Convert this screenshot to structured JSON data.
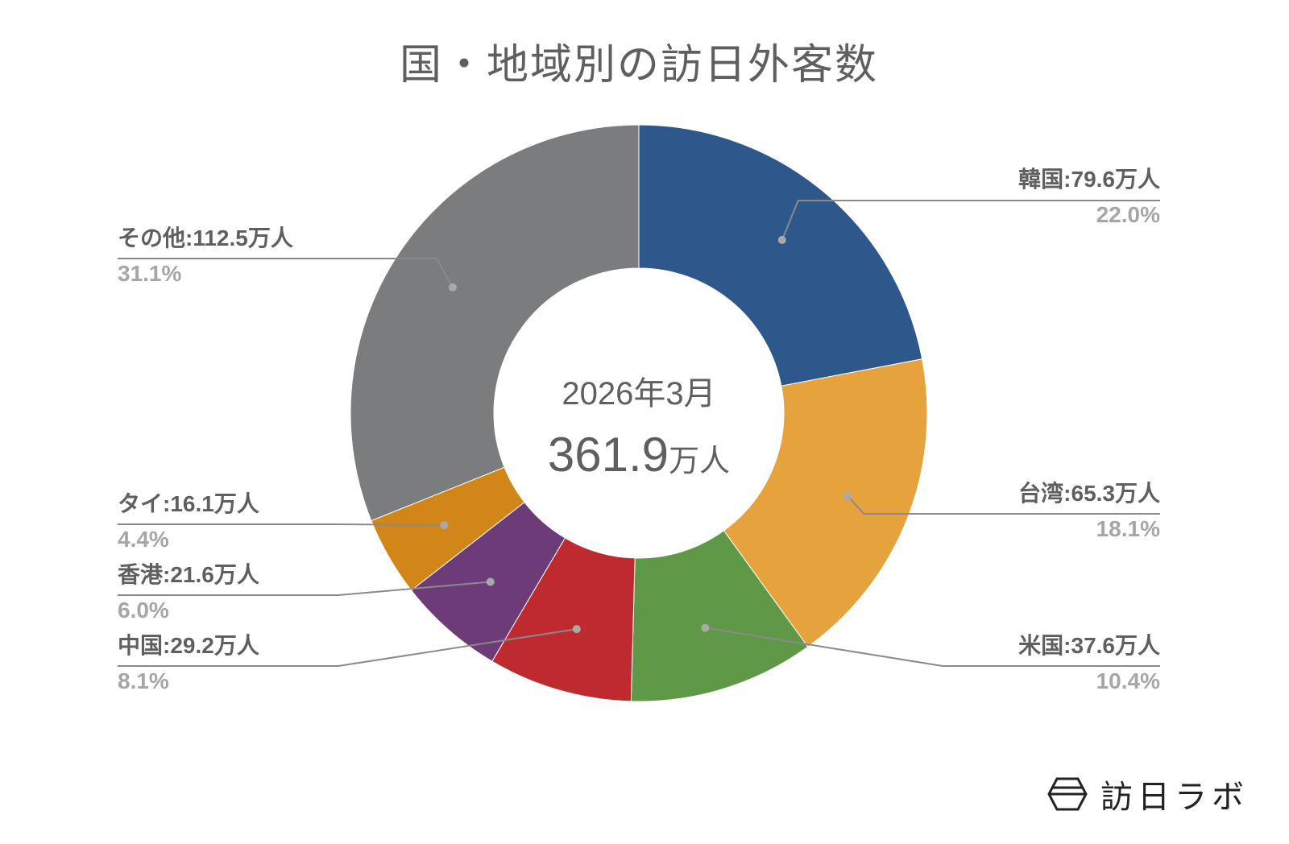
{
  "title": "国・地域別の訪日外客数",
  "center": {
    "date": "2026年3月",
    "total_number": "361.9",
    "total_unit": "万人"
  },
  "logo": {
    "icon": "hexagon-logo-icon",
    "text": "訪日ラボ"
  },
  "chart_data": {
    "type": "pie",
    "variant": "donut",
    "title": "国・地域別の訪日外客数",
    "subtitle": "2026年3月",
    "total": 361.9,
    "unit": "万人",
    "start_angle_deg": 0,
    "direction": "clockwise",
    "legend_position": "outside labels with leader lines",
    "categories": [
      "韓国",
      "台湾",
      "米国",
      "中国",
      "香港",
      "タイ",
      "その他"
    ],
    "values": [
      79.6,
      65.3,
      37.6,
      29.2,
      21.6,
      16.1,
      112.5
    ],
    "percentages": [
      22.0,
      18.1,
      10.4,
      8.1,
      6.0,
      4.4,
      31.1
    ],
    "colors": [
      "#2e578c",
      "#e6a23d",
      "#5f9846",
      "#bf2a2f",
      "#6e3b79",
      "#d18617",
      "#7a7c7d"
    ]
  },
  "labels": [
    {
      "name": "韓国:79.6万人",
      "pct": "22.0%"
    },
    {
      "name": "台湾:65.3万人",
      "pct": "18.1%"
    },
    {
      "name": "米国:37.6万人",
      "pct": "10.4%"
    },
    {
      "name": "中国:29.2万人",
      "pct": "8.1%"
    },
    {
      "name": "香港:21.6万人",
      "pct": "6.0%"
    },
    {
      "name": "タイ:16.1万人",
      "pct": "4.4%"
    },
    {
      "name": "その他:112.5万人",
      "pct": "31.1%"
    }
  ]
}
